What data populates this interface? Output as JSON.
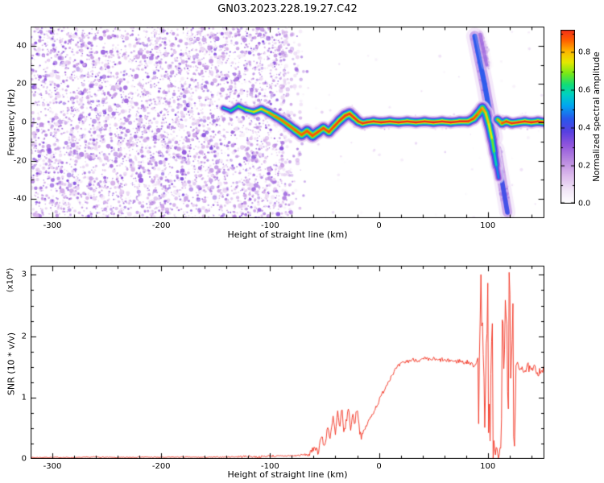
{
  "title": "GN03.2023.228.19.27.C42",
  "colors": {
    "snr_line": "#f3301e",
    "axis": "#000000",
    "background": "#ffffff"
  },
  "chart_data": [
    {
      "type": "heatmap",
      "title": "GN03.2023.228.19.27.C42",
      "xlabel": "Height of straight line (km)",
      "ylabel": "Frequency (Hz)",
      "xlim": [
        -320,
        152
      ],
      "ylim": [
        -50,
        50
      ],
      "x_ticks": [
        -300,
        -200,
        -100,
        0,
        100
      ],
      "x_minor_step": 20,
      "y_ticks": [
        -40,
        -20,
        0,
        20,
        40
      ],
      "y_minor_step": 10,
      "colorbar": {
        "label": "Normalized spectral amplitude",
        "range": [
          0,
          0.92
        ],
        "ticks": [
          "0.0",
          "0.2",
          "0.4",
          "0.6",
          "0.8"
        ],
        "tick_values": [
          0,
          0.2,
          0.4,
          0.6,
          0.8
        ],
        "minor_step": 0.1
      },
      "colormap": [
        [
          0,
          "#ffffff"
        ],
        [
          0.07,
          "#f2e6f7"
        ],
        [
          0.15,
          "#dbb8ec"
        ],
        [
          0.23,
          "#b887e0"
        ],
        [
          0.31,
          "#9055dd"
        ],
        [
          0.38,
          "#5840e0"
        ],
        [
          0.45,
          "#2858ec"
        ],
        [
          0.52,
          "#00a8f0"
        ],
        [
          0.58,
          "#00d2c0"
        ],
        [
          0.63,
          "#10dc78"
        ],
        [
          0.69,
          "#78e818"
        ],
        [
          0.75,
          "#e6e800"
        ],
        [
          0.81,
          "#ffb400"
        ],
        [
          0.87,
          "#ff5a00"
        ],
        [
          0.93,
          "#f0281e"
        ],
        [
          1,
          "#d4004b"
        ]
      ],
      "noise_field": {
        "description": "dense purple speckle noise left of signal onset",
        "x_range": [
          -320,
          -89
        ],
        "taper_x_range": [
          -89,
          -58
        ],
        "seed": 42,
        "density": 4600,
        "value_range": [
          0.06,
          0.33
        ]
      },
      "trace_segments": [
        {
          "points": [
            [
              -143,
              7.5,
              0.55,
              1.3
            ],
            [
              -136,
              6,
              0.6,
              1.4
            ],
            [
              -129,
              8.5,
              0.65,
              1.5
            ],
            [
              -122,
              6.5,
              0.7,
              1.6
            ],
            [
              -115,
              5.5,
              0.75,
              1.7
            ],
            [
              -108,
              7,
              0.78,
              1.7
            ],
            [
              -101,
              5,
              0.82,
              1.8
            ],
            [
              -95,
              3,
              0.85,
              1.8
            ],
            [
              -89,
              1,
              0.85,
              1.9
            ],
            [
              -83,
              -1.5,
              0.86,
              2
            ],
            [
              -77,
              -4,
              0.86,
              2.1
            ],
            [
              -71,
              -6.5,
              0.87,
              2.2
            ],
            [
              -66,
              -4.5,
              0.87,
              2.2
            ],
            [
              -61,
              -7,
              0.88,
              2.3
            ],
            [
              -56,
              -5,
              0.88,
              2.2
            ],
            [
              -51,
              -3,
              0.88,
              2.1
            ],
            [
              -46,
              -5,
              0.89,
              2.1
            ],
            [
              -41,
              -2,
              0.89,
              2.1
            ],
            [
              -36,
              1,
              0.9,
              2.2
            ],
            [
              -31,
              3.5,
              0.9,
              2.3
            ],
            [
              -27,
              4.5,
              0.9,
              2.3
            ],
            [
              -23,
              2.5,
              0.91,
              2.1
            ],
            [
              -19,
              0.5,
              0.91,
              2
            ],
            [
              -15,
              -0.5,
              0.91,
              1.9
            ],
            [
              -11,
              0,
              0.92,
              1.9
            ],
            [
              -5,
              0.5,
              0.92,
              1.9
            ],
            [
              2,
              0,
              0.93,
              1.9
            ],
            [
              10,
              0.5,
              0.93,
              1.9
            ],
            [
              18,
              0,
              0.93,
              1.9
            ],
            [
              26,
              0.5,
              0.93,
              1.9
            ],
            [
              34,
              0,
              0.93,
              1.9
            ],
            [
              42,
              0.5,
              0.93,
              1.9
            ],
            [
              50,
              0,
              0.94,
              1.9
            ],
            [
              58,
              0.5,
              0.94,
              1.9
            ],
            [
              66,
              0,
              0.94,
              1.9
            ],
            [
              74,
              0.5,
              0.94,
              1.9
            ],
            [
              82,
              0.5,
              0.92,
              2
            ],
            [
              87,
              2,
              0.9,
              2.1
            ],
            [
              91,
              4.5,
              0.86,
              2.2
            ],
            [
              95,
              7.5,
              0.84,
              2.2
            ],
            [
              98,
              5,
              0.8,
              2.2
            ],
            [
              101,
              -1,
              0.78,
              2.2
            ],
            [
              104,
              -9,
              0.72,
              2.1
            ],
            [
              106,
              -16,
              0.64,
              2
            ],
            [
              108,
              -23,
              0.54,
              1.8
            ],
            [
              110,
              -29,
              0.44,
              1.5
            ]
          ]
        },
        {
          "points": [
            [
              109,
              1.5,
              0.78,
              1.8
            ],
            [
              113,
              -0.5,
              0.86,
              1.9
            ],
            [
              117,
              0.5,
              0.9,
              1.9
            ],
            [
              122,
              -0.5,
              0.92,
              1.9
            ],
            [
              128,
              0,
              0.92,
              1.9
            ],
            [
              134,
              0.5,
              0.93,
              1.9
            ],
            [
              140,
              0,
              0.93,
              1.9
            ],
            [
              146,
              0.5,
              0.93,
              1.9
            ],
            [
              152,
              0,
              0.93,
              1.9
            ]
          ]
        }
      ],
      "streaks": [
        {
          "points": [
            [
              88,
              45
            ],
            [
              97,
              20
            ],
            [
              106,
              -8
            ]
          ],
          "value": 0.45,
          "width_hz": 1.5,
          "alpha": 1
        },
        {
          "points": [
            [
              108,
              -14
            ],
            [
              118,
              -47
            ]
          ],
          "value": 0.42,
          "width_hz": 1.4,
          "alpha": 1
        },
        {
          "points": [
            [
              93,
              46
            ],
            [
              99,
              30
            ]
          ],
          "value": 0.3,
          "width_hz": 1.0,
          "alpha": 0.7
        }
      ]
    },
    {
      "type": "line",
      "xlabel": "Height of straight line (km)",
      "ylabel": "SNR (10 * v/v)",
      "scale_label": "(x10⁴)",
      "xlim": [
        -320,
        152
      ],
      "ylim": [
        0,
        3.15
      ],
      "x_ticks": [
        -300,
        -200,
        -100,
        0,
        100
      ],
      "x_minor_step": 20,
      "y_ticks": [
        0,
        1,
        2,
        3
      ],
      "y_minor_step": 0.25,
      "color": "#f3301e",
      "jitter_seed": 7,
      "jitter_regions": [
        [
          -320,
          -130,
          0.008
        ],
        [
          -130,
          -66,
          0.018
        ],
        [
          -66,
          -16,
          0.055
        ],
        [
          -16,
          91.5,
          0.035
        ],
        [
          91.5,
          105.3,
          1.45
        ],
        [
          105.3,
          112.6,
          0.05
        ],
        [
          112.6,
          125.5,
          1.45
        ],
        [
          125.5,
          152.01,
          0.07
        ]
      ],
      "points": [
        [
          -320,
          0.02
        ],
        [
          -300,
          0.025
        ],
        [
          -280,
          0.02
        ],
        [
          -260,
          0.03
        ],
        [
          -240,
          0.02
        ],
        [
          -220,
          0.03
        ],
        [
          -200,
          0.025
        ],
        [
          -180,
          0.03
        ],
        [
          -160,
          0.025
        ],
        [
          -145,
          0.03
        ],
        [
          -130,
          0.035
        ],
        [
          -120,
          0.04
        ],
        [
          -110,
          0.03
        ],
        [
          -100,
          0.05
        ],
        [
          -92,
          0.04
        ],
        [
          -85,
          0.05
        ],
        [
          -78,
          0.05
        ],
        [
          -72,
          0.06
        ],
        [
          -66,
          0.07
        ],
        [
          -62,
          0.09
        ],
        [
          -59,
          0.22
        ],
        [
          -56,
          0.1
        ],
        [
          -53,
          0.38
        ],
        [
          -50,
          0.18
        ],
        [
          -47,
          0.55
        ],
        [
          -45,
          0.3
        ],
        [
          -42,
          0.68
        ],
        [
          -40,
          0.38
        ],
        [
          -38,
          0.78
        ],
        [
          -36,
          0.45
        ],
        [
          -34,
          0.85
        ],
        [
          -32,
          0.4
        ],
        [
          -30,
          0.62
        ],
        [
          -28,
          0.82
        ],
        [
          -26,
          0.5
        ],
        [
          -24,
          0.72
        ],
        [
          -22,
          0.58
        ],
        [
          -20,
          0.88
        ],
        [
          -18,
          0.48
        ],
        [
          -16,
          0.36
        ],
        [
          -14,
          0.44
        ],
        [
          -12,
          0.52
        ],
        [
          -10,
          0.6
        ],
        [
          -8,
          0.66
        ],
        [
          -6,
          0.73
        ],
        [
          -4,
          0.8
        ],
        [
          -2,
          0.87
        ],
        [
          0,
          0.94
        ],
        [
          2,
          1.02
        ],
        [
          4,
          1.1
        ],
        [
          6,
          1.17
        ],
        [
          8,
          1.24
        ],
        [
          10,
          1.31
        ],
        [
          12,
          1.37
        ],
        [
          14,
          1.43
        ],
        [
          16,
          1.47
        ],
        [
          18,
          1.51
        ],
        [
          20,
          1.54
        ],
        [
          23,
          1.57
        ],
        [
          26,
          1.59
        ],
        [
          30,
          1.61
        ],
        [
          34,
          1.62
        ],
        [
          38,
          1.6
        ],
        [
          42,
          1.63
        ],
        [
          46,
          1.61
        ],
        [
          50,
          1.63
        ],
        [
          54,
          1.6
        ],
        [
          58,
          1.62
        ],
        [
          62,
          1.59
        ],
        [
          66,
          1.61
        ],
        [
          70,
          1.58
        ],
        [
          74,
          1.6
        ],
        [
          78,
          1.57
        ],
        [
          82,
          1.58
        ],
        [
          85,
          1.54
        ],
        [
          88,
          1.52
        ],
        [
          90,
          1.6
        ],
        [
          92,
          1.75
        ],
        [
          94,
          1.7
        ],
        [
          96,
          1.8
        ],
        [
          98,
          1.65
        ],
        [
          100,
          1.72
        ],
        [
          102,
          1.55
        ],
        [
          103.5,
          1.3
        ],
        [
          104.5,
          0.8
        ],
        [
          105.2,
          0.4
        ],
        [
          106,
          0.14
        ],
        [
          107,
          0.07
        ],
        [
          108,
          0.18
        ],
        [
          109,
          0.09
        ],
        [
          110,
          0.05
        ],
        [
          111,
          0.13
        ],
        [
          112,
          0.22
        ],
        [
          112.5,
          0.5
        ],
        [
          113,
          1.3
        ],
        [
          114,
          1.7
        ],
        [
          116,
          1.78
        ],
        [
          118,
          1.7
        ],
        [
          120,
          1.76
        ],
        [
          122,
          1.62
        ],
        [
          124,
          1.52
        ],
        [
          125.5,
          1.45
        ],
        [
          127,
          1.52
        ],
        [
          129,
          1.46
        ],
        [
          131,
          1.52
        ],
        [
          134,
          1.43
        ],
        [
          137,
          1.5
        ],
        [
          140,
          1.42
        ],
        [
          143,
          1.48
        ],
        [
          146,
          1.41
        ],
        [
          149,
          1.46
        ],
        [
          152,
          1.43
        ]
      ]
    }
  ]
}
